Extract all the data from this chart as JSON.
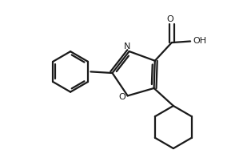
{
  "background_color": "#ffffff",
  "line_color": "#1a1a1a",
  "line_width": 1.6,
  "figsize": [
    2.94,
    1.97
  ],
  "dpi": 100,
  "xlim": [
    0,
    9.0
  ],
  "ylim": [
    0,
    6.0
  ]
}
